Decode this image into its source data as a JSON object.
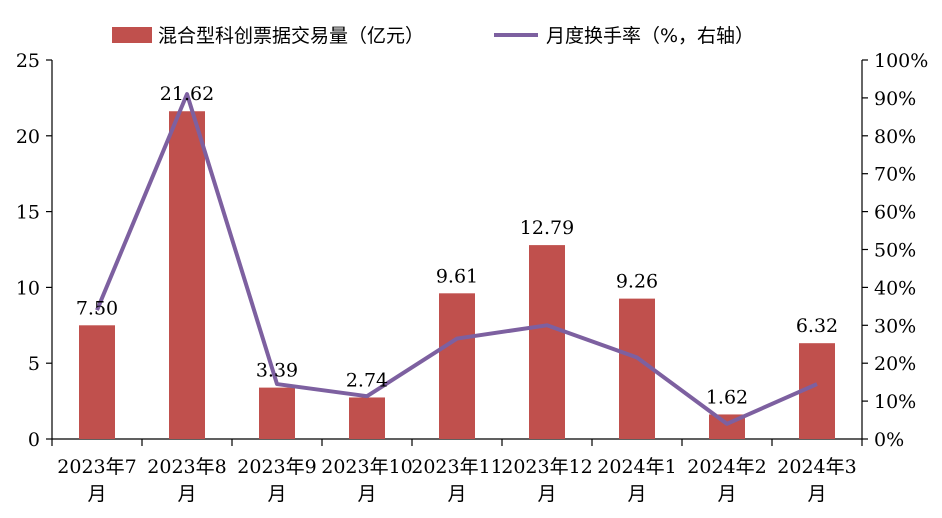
{
  "chart_data": {
    "type": "bar+line",
    "categories": [
      [
        "2023年7",
        "月"
      ],
      [
        "2023年8",
        "月"
      ],
      [
        "2023年9",
        "月"
      ],
      [
        "2023年10",
        "月"
      ],
      [
        "2023年11",
        "月"
      ],
      [
        "2023年12",
        "月"
      ],
      [
        "2024年1",
        "月"
      ],
      [
        "2024年2",
        "月"
      ],
      [
        "2024年3",
        "月"
      ]
    ],
    "series": [
      {
        "name": "混合型科创票据交易量（亿元）",
        "type": "bar",
        "axis": "left",
        "color": "#c0504d",
        "values": [
          7.5,
          21.62,
          3.39,
          2.74,
          9.61,
          12.79,
          9.26,
          1.62,
          6.32
        ],
        "labels": [
          "7.50",
          "21.62",
          "3.39",
          "2.74",
          "9.61",
          "12.79",
          "9.26",
          "1.62",
          "6.32"
        ]
      },
      {
        "name": "月度换手率（%，右轴）",
        "type": "line",
        "axis": "right",
        "color": "#7d60a0",
        "values": [
          34,
          91,
          14.5,
          11.3,
          26.5,
          30,
          21.5,
          4,
          14.5
        ]
      }
    ],
    "y_left": {
      "min": 0,
      "max": 25,
      "ticks": [
        "0",
        "5",
        "10",
        "15",
        "20",
        "25"
      ]
    },
    "y_right": {
      "min": 0,
      "max": 100,
      "ticks": [
        "0%",
        "10%",
        "20%",
        "30%",
        "40%",
        "50%",
        "60%",
        "70%",
        "80%",
        "90%",
        "100%"
      ]
    },
    "grid": false,
    "legend": "top"
  }
}
